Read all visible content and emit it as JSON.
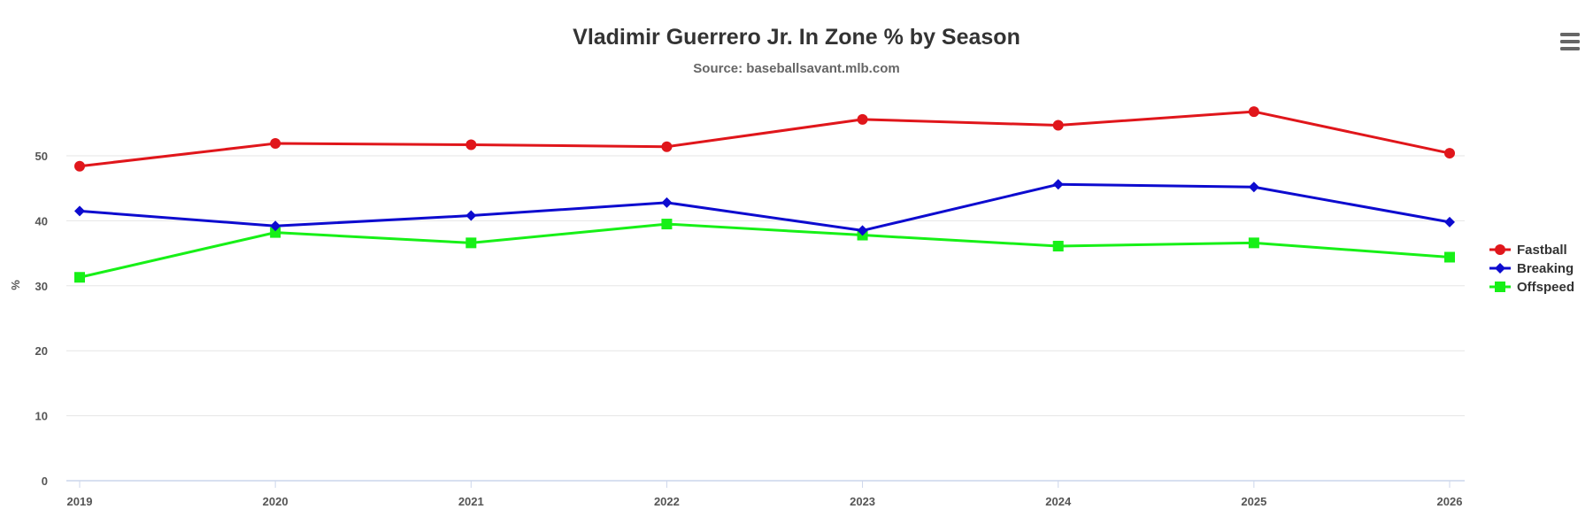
{
  "chart_data": {
    "type": "line",
    "title": "Vladimir Guerrero Jr. In Zone % by Season",
    "subtitle": "Source: baseballsavant.mlb.com",
    "xlabel": "",
    "ylabel": "%",
    "x": [
      "2019",
      "2020",
      "2021",
      "2022",
      "2023",
      "2024",
      "2025",
      "2026"
    ],
    "ylim": [
      0,
      60
    ],
    "yticks": [
      0,
      10,
      20,
      30,
      40,
      50
    ],
    "grid": true,
    "legend_position": "right",
    "series": [
      {
        "name": "Fastball",
        "color": "#e0161b",
        "marker": "circle",
        "values": [
          48.4,
          51.9,
          51.7,
          51.4,
          55.6,
          54.7,
          56.8,
          50.4
        ]
      },
      {
        "name": "Breaking",
        "color": "#0d0bcf",
        "marker": "diamond",
        "values": [
          41.5,
          39.2,
          40.8,
          42.8,
          38.5,
          45.6,
          45.2,
          39.8
        ]
      },
      {
        "name": "Offspeed",
        "color": "#17f017",
        "marker": "square",
        "values": [
          31.3,
          38.2,
          36.6,
          39.5,
          37.8,
          36.1,
          36.6,
          34.4
        ]
      }
    ]
  },
  "menu": {
    "icon": "hamburger-menu-icon"
  }
}
